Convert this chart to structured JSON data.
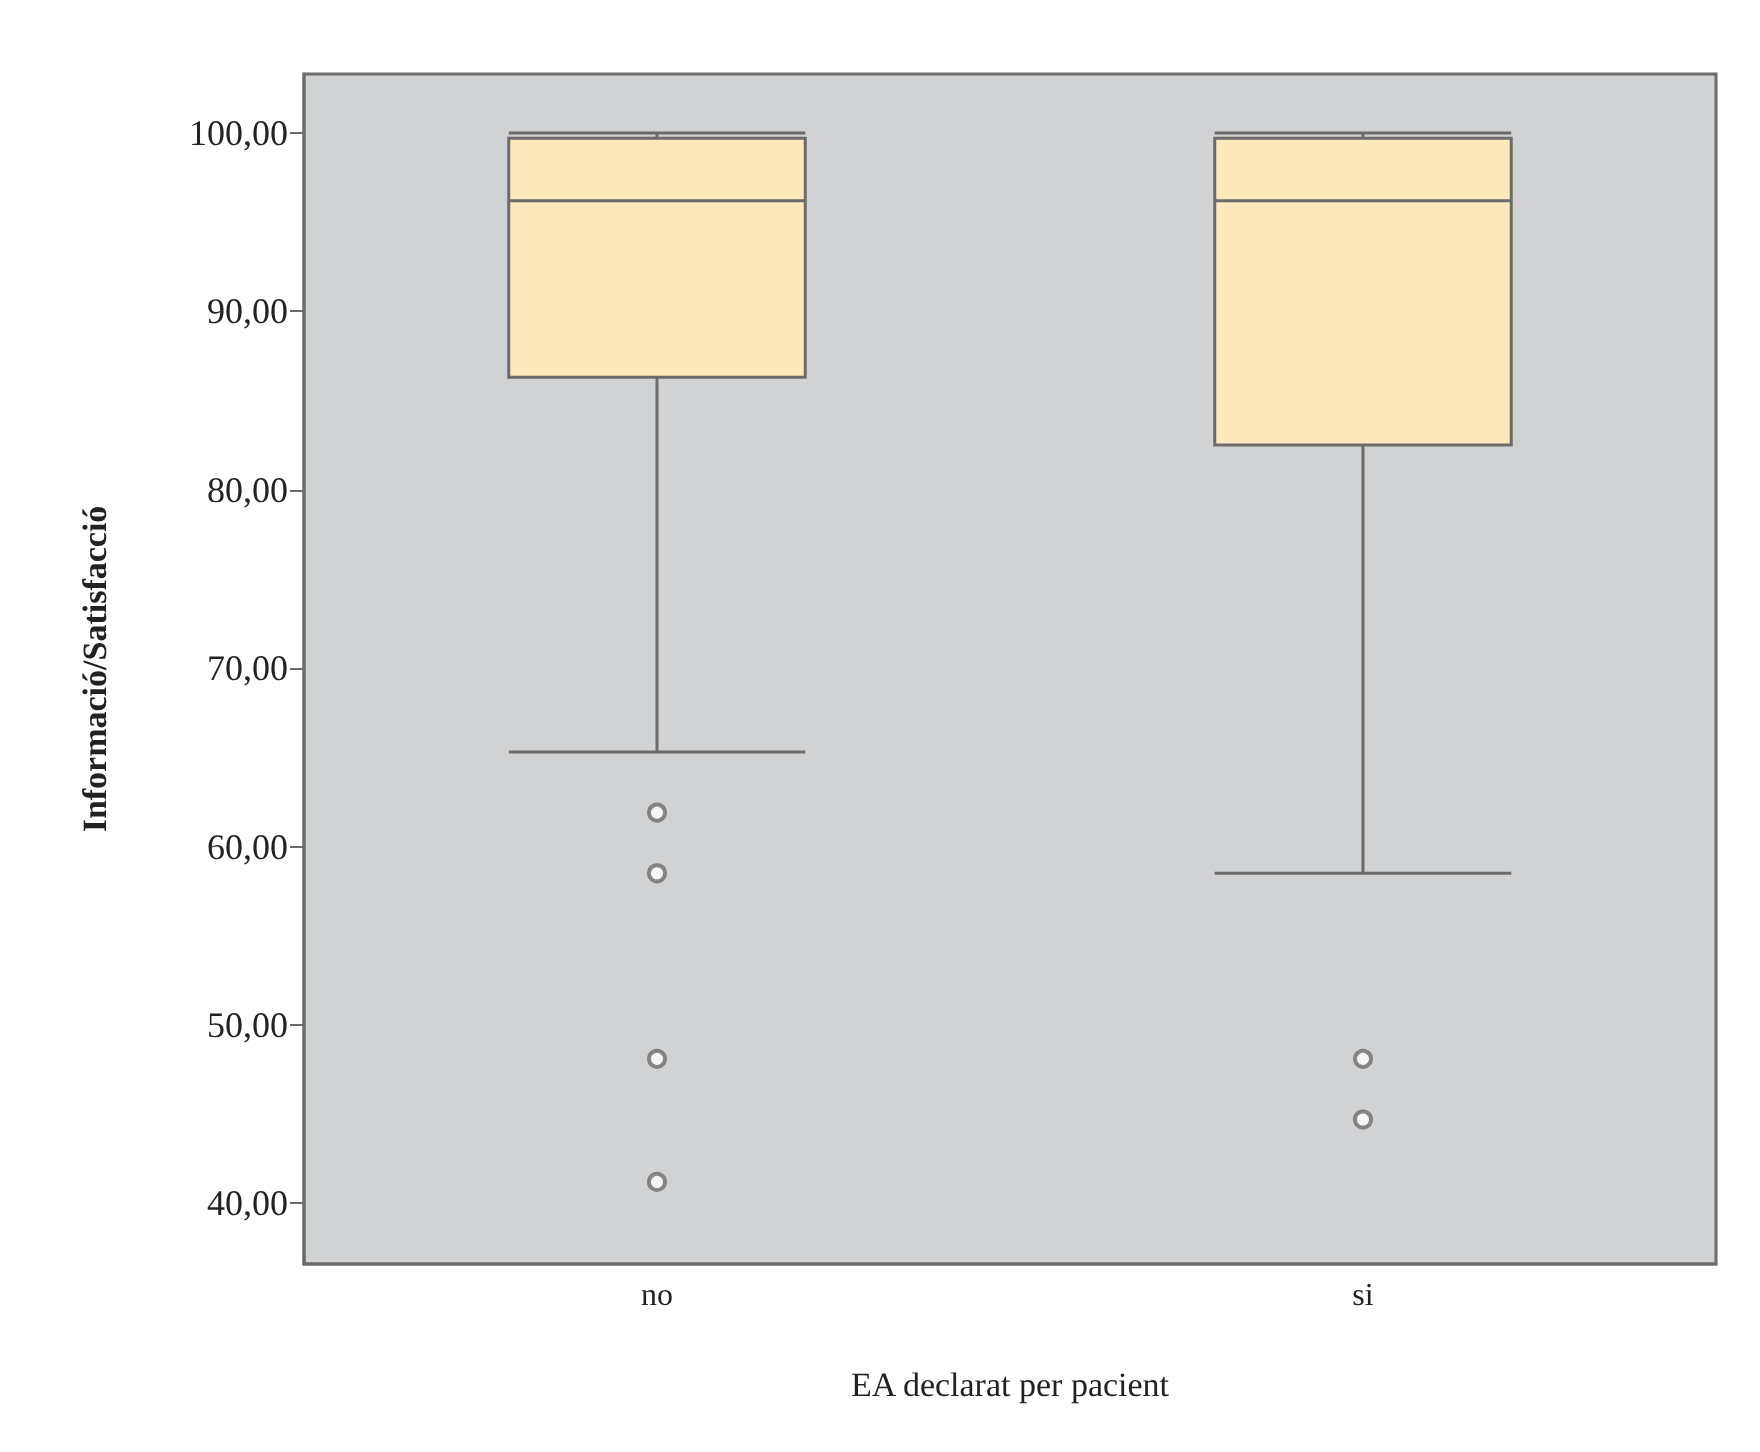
{
  "chart_data": {
    "type": "box",
    "xlabel": "EA declarat per pacient",
    "ylabel": "Informació/Satisfacció",
    "categories": [
      "no",
      "si"
    ],
    "series": [
      {
        "color": "#fde8bb",
        "boxes": [
          {
            "low": 65.3,
            "q1": 86.3,
            "median": 96.2,
            "q3": 99.7,
            "high": 100,
            "outliers": [
              61.9,
              58.5,
              48.1,
              41.2
            ]
          },
          {
            "low": 58.5,
            "q1": 82.5,
            "median": 96.2,
            "q3": 99.7,
            "high": 100,
            "outliers": [
              48.1,
              44.7
            ]
          }
        ]
      }
    ],
    "ylim": [
      36.6,
      103.3
    ],
    "yticks": [
      {
        "value": 40,
        "label": "40,00"
      },
      {
        "value": 50,
        "label": "50,00"
      },
      {
        "value": 60,
        "label": "60,00"
      },
      {
        "value": 70,
        "label": "70,00"
      },
      {
        "value": 80,
        "label": "80,00"
      },
      {
        "value": 90,
        "label": "90,00"
      },
      {
        "value": 100,
        "label": "100,00"
      }
    ],
    "grid": false
  }
}
